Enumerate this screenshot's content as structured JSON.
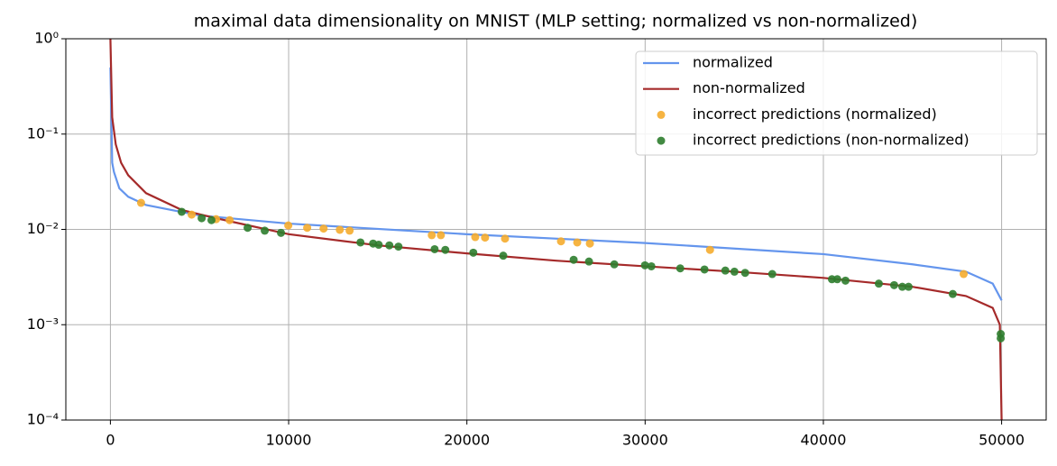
{
  "chart_data": {
    "type": "line",
    "title": "maximal data dimensionality on MNIST (MLP setting; normalized vs non-normalized)",
    "xlim": [
      -2500,
      52500
    ],
    "xticks": [
      0,
      10000,
      20000,
      30000,
      40000,
      50000
    ],
    "ylim": [
      0.0001,
      1
    ],
    "yscale": "log",
    "yticks": [
      {
        "value": 0.0001,
        "label": "10⁻⁴"
      },
      {
        "value": 0.001,
        "label": "10⁻³"
      },
      {
        "value": 0.01,
        "label": "10⁻²"
      },
      {
        "value": 0.1,
        "label": "10⁻¹"
      },
      {
        "value": 1,
        "label": "10⁰"
      }
    ],
    "grid": true,
    "legend": "upper right",
    "series": [
      {
        "name": "normalized",
        "type": "line",
        "color": "#6495ed",
        "x": [
          0,
          100,
          200,
          500,
          1000,
          2000,
          5000,
          10000,
          20000,
          30000,
          40000,
          45000,
          48000,
          49500,
          50000
        ],
        "values": [
          0.5,
          0.05,
          0.04,
          0.027,
          0.022,
          0.018,
          0.014,
          0.0115,
          0.0089,
          0.0072,
          0.0055,
          0.0043,
          0.0036,
          0.0027,
          0.0018
        ]
      },
      {
        "name": "non-normalized",
        "type": "line",
        "color": "#a52a2a",
        "x": [
          0,
          100,
          300,
          600,
          1000,
          2000,
          4000,
          6000,
          10000,
          15000,
          20000,
          25000,
          30000,
          35000,
          40000,
          45000,
          48000,
          49500,
          49900,
          50000
        ],
        "values": [
          1,
          0.15,
          0.078,
          0.05,
          0.037,
          0.024,
          0.016,
          0.013,
          0.0089,
          0.0068,
          0.0056,
          0.0047,
          0.0041,
          0.0036,
          0.0031,
          0.0025,
          0.002,
          0.0015,
          0.001,
          0.0001
        ]
      },
      {
        "name": "incorrect predictions (normalized)",
        "type": "scatter",
        "color": "#f5ac2d",
        "x": [
          1720,
          4560,
          5930,
          6690,
          9980,
          11040,
          11960,
          12870,
          13420,
          18030,
          18540,
          20470,
          21020,
          22140,
          25280,
          26190,
          26900,
          33640,
          47870
        ],
        "values": [
          0.019,
          0.0143,
          0.0128,
          0.0125,
          0.011,
          0.0104,
          0.0102,
          0.0099,
          0.0097,
          0.0087,
          0.0087,
          0.0083,
          0.0082,
          0.008,
          0.0075,
          0.0073,
          0.0071,
          0.0061,
          0.0034
        ]
      },
      {
        "name": "incorrect predictions (non-normalized)",
        "type": "scatter",
        "color": "#2e7d2e",
        "x": [
          4000,
          5120,
          5670,
          7700,
          8660,
          9570,
          14030,
          14740,
          15050,
          15650,
          16160,
          18190,
          18790,
          20360,
          22040,
          25990,
          26850,
          28270,
          29990,
          30350,
          31970,
          33330,
          34500,
          35010,
          35610,
          37130,
          40480,
          40780,
          41240,
          43110,
          43970,
          44430,
          44780,
          47260,
          49950,
          49950
        ],
        "values": [
          0.0153,
          0.0131,
          0.0125,
          0.0104,
          0.0097,
          0.0092,
          0.0073,
          0.0071,
          0.0069,
          0.0068,
          0.0066,
          0.0062,
          0.0061,
          0.0057,
          0.0053,
          0.0048,
          0.0046,
          0.0043,
          0.0042,
          0.0041,
          0.0039,
          0.0038,
          0.0037,
          0.0036,
          0.0035,
          0.0034,
          0.003,
          0.003,
          0.0029,
          0.0027,
          0.0026,
          0.0025,
          0.0025,
          0.0021,
          0.0008,
          0.00072
        ]
      }
    ]
  }
}
